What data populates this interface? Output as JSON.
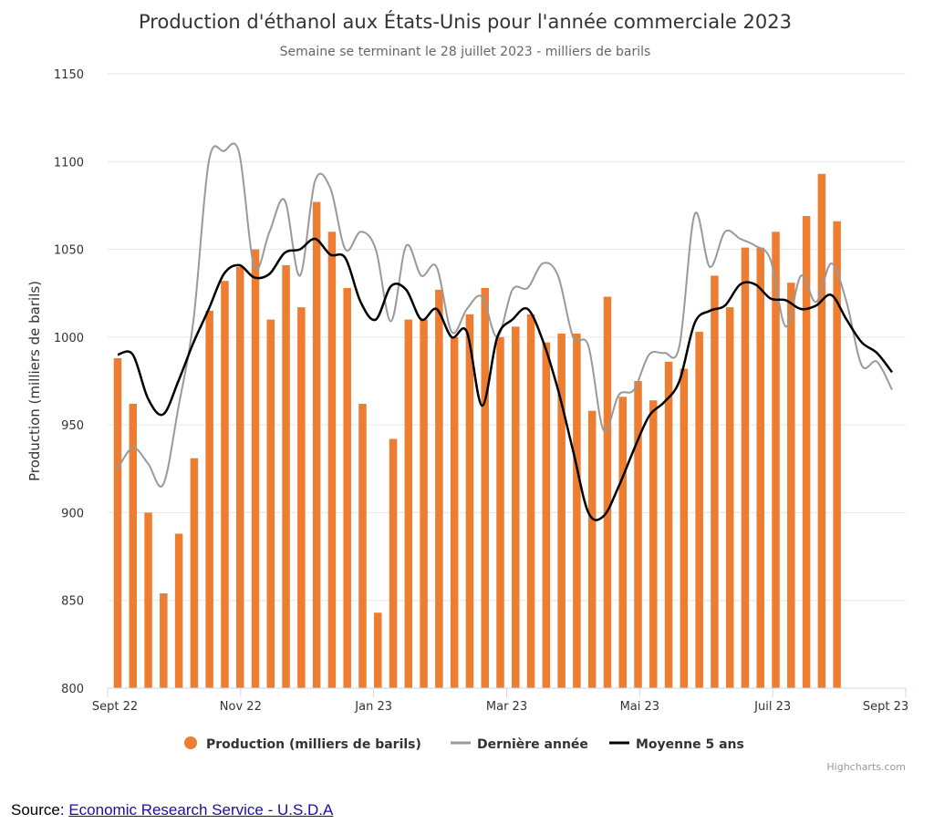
{
  "chart_data": {
    "type": "bar",
    "title": "Production d'éthanol aux États-Unis pour l'année commerciale 2023",
    "subtitle": "Semaine se terminant le 28 juillet 2023 - milliers de barils",
    "ylabel": "Production (milliers de barils)",
    "ylim": [
      800,
      1150
    ],
    "yticks": [
      800,
      850,
      900,
      950,
      1000,
      1050,
      1100,
      1150
    ],
    "xticks": [
      "Sept 22",
      "Nov 22",
      "Jan 23",
      "Mar 23",
      "Mai 23",
      "Juil 23",
      "Sept 23"
    ],
    "grid": true,
    "legend_position": "bottom",
    "series": [
      {
        "name": "Production (milliers de barils)",
        "type": "bar",
        "color": "#ed7d31",
        "values": [
          988,
          962,
          900,
          854,
          888,
          931,
          1015,
          1032,
          1040,
          1050,
          1010,
          1041,
          1017,
          1077,
          1060,
          1028,
          962,
          843,
          942,
          1010,
          1010,
          1027,
          1000,
          1013,
          1028,
          1000,
          1006,
          1013,
          997,
          1002,
          1002,
          958,
          1023,
          966,
          975,
          964,
          986,
          982,
          1003,
          1035,
          1017,
          1051,
          1051,
          1060,
          1031,
          1069,
          1093,
          1066
        ]
      },
      {
        "name": "Dernière année",
        "type": "line",
        "color": "#999999",
        "values": [
          925,
          937,
          928,
          916,
          960,
          1010,
          1100,
          1106,
          1105,
          1040,
          1060,
          1078,
          1035,
          1089,
          1085,
          1050,
          1060,
          1050,
          1009,
          1052,
          1035,
          1040,
          1003,
          1016,
          1023,
          1000,
          1027,
          1028,
          1042,
          1035,
          1000,
          995,
          947,
          967,
          970,
          990,
          991,
          995,
          1070,
          1040,
          1060,
          1056,
          1052,
          1044,
          1006,
          1035,
          1020,
          1042,
          1020,
          984,
          986,
          970
        ]
      },
      {
        "name": "Moyenne 5 ans",
        "type": "line",
        "color": "#000000",
        "values": [
          990,
          990,
          965,
          956,
          975,
          997,
          1016,
          1036,
          1041,
          1034,
          1036,
          1048,
          1050,
          1056,
          1047,
          1045,
          1020,
          1010,
          1029,
          1027,
          1010,
          1016,
          1000,
          1003,
          961,
          1000,
          1010,
          1016,
          998,
          970,
          935,
          900,
          898,
          915,
          936,
          955,
          963,
          975,
          1008,
          1015,
          1018,
          1030,
          1030,
          1022,
          1021,
          1016,
          1018,
          1024,
          1010,
          997,
          991,
          980
        ]
      }
    ]
  },
  "credits": "Highcharts.com",
  "source": {
    "label": "Source:",
    "link_text": "Economic Research Service - U.S.D.A"
  }
}
